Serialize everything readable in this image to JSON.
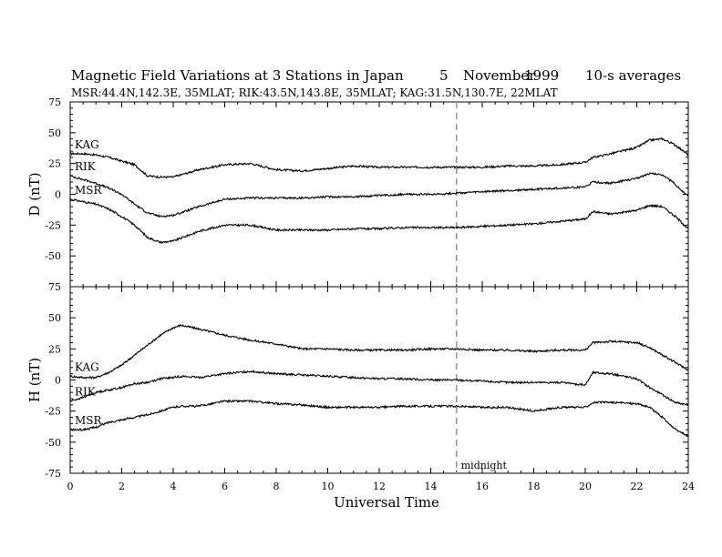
{
  "header": {
    "title": "Magnetic Field Variations at 3 Stations in Japan",
    "day": "5",
    "month": "November",
    "year": "1999",
    "averaging": "10-s averages",
    "stations": "MSR:44.4N,142.3E, 35MLAT;  RIK:43.5N,143.8E, 35MLAT;  KAG:31.5N,130.7E, 22MLAT"
  },
  "chart_data": [
    {
      "type": "line",
      "panel": "D",
      "ylabel": "D (nT)",
      "xlabel": "Universal Time",
      "xlim": [
        0,
        24
      ],
      "ylim": [
        -75,
        75
      ],
      "xticks": [
        0,
        2,
        4,
        6,
        8,
        10,
        12,
        14,
        16,
        18,
        20,
        22,
        24
      ],
      "yticks": [
        75,
        50,
        25,
        0,
        -25,
        -50,
        -75
      ],
      "annotation": {
        "x": 15,
        "text": "midnight",
        "style": "dashed"
      },
      "x": [
        0,
        0.5,
        1,
        1.5,
        2,
        2.5,
        3,
        3.5,
        4,
        5,
        6,
        7,
        8,
        9,
        10,
        11,
        12,
        13,
        14,
        15,
        16,
        17,
        18,
        19,
        20,
        20.3,
        21,
        22,
        22.5,
        23,
        23.5,
        24
      ],
      "series": [
        {
          "name": "KAG",
          "values": [
            33,
            33,
            32,
            30,
            27,
            24,
            15,
            14,
            14,
            20,
            24,
            25,
            20,
            19,
            21,
            23,
            22,
            22,
            22,
            22,
            22,
            23,
            23,
            24,
            26,
            30,
            33,
            38,
            44,
            45,
            40,
            32
          ]
        },
        {
          "name": "RIK",
          "values": [
            15,
            12,
            9,
            5,
            0,
            -8,
            -15,
            -18,
            -17,
            -10,
            -4,
            -3,
            -3,
            -3,
            -2,
            -2,
            -1,
            0,
            0,
            1,
            2,
            3,
            4,
            5,
            6,
            10,
            9,
            13,
            17,
            16,
            8,
            -2
          ]
        },
        {
          "name": "MSR",
          "values": [
            -4,
            -6,
            -8,
            -12,
            -18,
            -25,
            -35,
            -39,
            -38,
            -30,
            -25,
            -25,
            -29,
            -29,
            -29,
            -28,
            -28,
            -27,
            -27,
            -27,
            -26,
            -25,
            -24,
            -22,
            -20,
            -14,
            -16,
            -13,
            -9,
            -10,
            -18,
            -28
          ]
        }
      ]
    },
    {
      "type": "line",
      "panel": "H",
      "ylabel": "H (nT)",
      "xlabel": "Universal Time",
      "xlim": [
        0,
        24
      ],
      "ylim": [
        -75,
        75
      ],
      "xticks": [
        0,
        2,
        4,
        6,
        8,
        10,
        12,
        14,
        16,
        18,
        20,
        22,
        24
      ],
      "yticks": [
        75,
        50,
        25,
        0,
        -25,
        -50,
        -75
      ],
      "annotation": {
        "x": 15,
        "text": "midnight",
        "style": "dashed"
      },
      "x": [
        0,
        0.5,
        1,
        1.5,
        2,
        2.5,
        3,
        3.5,
        4,
        4.3,
        5,
        6,
        7,
        8,
        9,
        10,
        11,
        12,
        13,
        14,
        15,
        16,
        17,
        18,
        19,
        20,
        20.3,
        21,
        22,
        22.5,
        23,
        23.5,
        24
      ],
      "series": [
        {
          "name": "KAG",
          "values": [
            3,
            2,
            2,
            6,
            12,
            20,
            28,
            36,
            42,
            44,
            41,
            36,
            32,
            29,
            25,
            25,
            24,
            24,
            24,
            25,
            25,
            24,
            24,
            23,
            24,
            24,
            30,
            31,
            30,
            26,
            20,
            14,
            8
          ]
        },
        {
          "name": "RIK",
          "values": [
            -17,
            -14,
            -10,
            -8,
            -6,
            -3,
            -2,
            1,
            2,
            3,
            2,
            5,
            7,
            5,
            4,
            3,
            2,
            1,
            1,
            0,
            0,
            -1,
            -2,
            -2,
            -2,
            -4,
            6,
            5,
            1,
            -6,
            -12,
            -18,
            -20
          ]
        },
        {
          "name": "MSR",
          "values": [
            -40,
            -40,
            -38,
            -34,
            -32,
            -30,
            -28,
            -25,
            -22,
            -21,
            -21,
            -17,
            -17,
            -19,
            -20,
            -22,
            -22,
            -22,
            -21,
            -21,
            -21,
            -22,
            -22,
            -25,
            -22,
            -22,
            -18,
            -18,
            -19,
            -22,
            -30,
            -40,
            -45
          ]
        }
      ]
    }
  ]
}
